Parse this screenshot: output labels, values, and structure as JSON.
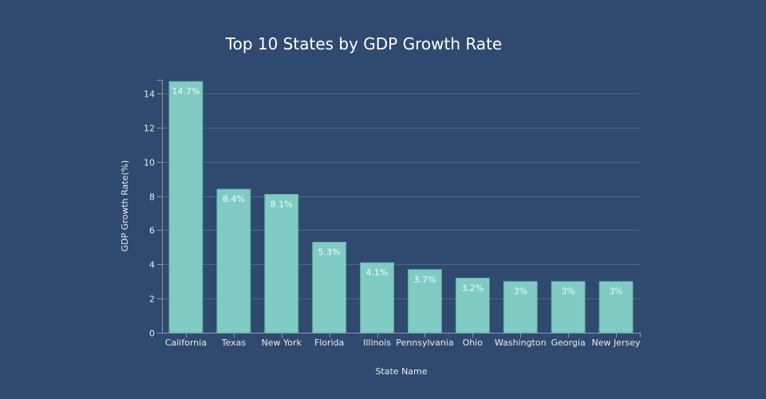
{
  "chart_data": {
    "type": "bar",
    "title": "Top 10 States by GDP Growth Rate",
    "xlabel": "State Name",
    "ylabel": "GDP Growth Rate(%)",
    "categories": [
      "California",
      "Texas",
      "New York",
      "Florida",
      "Illinois",
      "Pennsylvania",
      "Ohio",
      "Washington",
      "Georgia",
      "New Jersey"
    ],
    "values": [
      14.7,
      8.4,
      8.1,
      5.3,
      4.1,
      3.7,
      3.2,
      3,
      3,
      3
    ],
    "data_labels": [
      "14.7%",
      "8.4%",
      "8.1%",
      "5.3%",
      "4.1%",
      "3.7%",
      "3.2%",
      "3%",
      "3%",
      "3%"
    ],
    "ylim": [
      0,
      14.8
    ],
    "yticks": [
      0,
      2,
      4,
      6,
      8,
      10,
      12,
      14
    ],
    "grid": true,
    "legend": "none",
    "colors": {
      "background": "#2f4a6e",
      "bar": "#80cbc4",
      "bar_outline": "#5fa8a2",
      "text": "#e6ebf2",
      "title": "#ffffff",
      "grid": "#4d6688",
      "axis": "#8a99ad"
    }
  }
}
